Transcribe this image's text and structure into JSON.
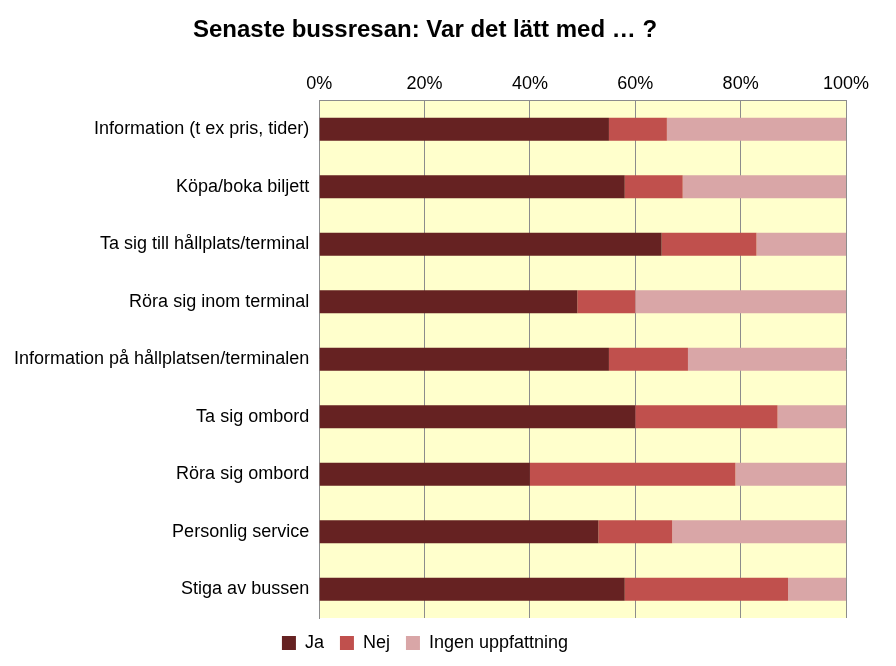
{
  "chart_data": {
    "type": "bar",
    "title": "Senaste bussresan: Var det lätt med … ?",
    "orientation": "horizontal",
    "stacked": true,
    "grid": true,
    "legend": "bottom",
    "categories": [
      "Information (t ex pris, tider)",
      "Köpa/boka biljett",
      "Ta sig till hållplats/terminal",
      "Röra sig inom terminal",
      "Information på hållplatsen/terminalen",
      "Ta sig ombord",
      "Röra sig ombord",
      "Personlig service",
      "Stiga av bussen"
    ],
    "series": [
      {
        "name": "Ja",
        "color": "#662222",
        "values": [
          55,
          58,
          65,
          49,
          55,
          60,
          40,
          53,
          58
        ]
      },
      {
        "name": "Nej",
        "color": "#c0504d",
        "values": [
          11,
          11,
          18,
          11,
          15,
          27,
          39,
          14,
          31
        ]
      },
      {
        "name": "Ingen uppfattning",
        "color": "#d9a6a7",
        "values": [
          34,
          31,
          17,
          40,
          30,
          13,
          21,
          33,
          11
        ]
      }
    ],
    "xlim": [
      0,
      100
    ],
    "xticks": [
      {
        "value": 0,
        "label": "0%"
      },
      {
        "value": 20,
        "label": "20%"
      },
      {
        "value": 40,
        "label": "40%"
      },
      {
        "value": 60,
        "label": "60%"
      },
      {
        "value": 80,
        "label": "80%"
      },
      {
        "value": 100,
        "label": "100%"
      }
    ]
  }
}
